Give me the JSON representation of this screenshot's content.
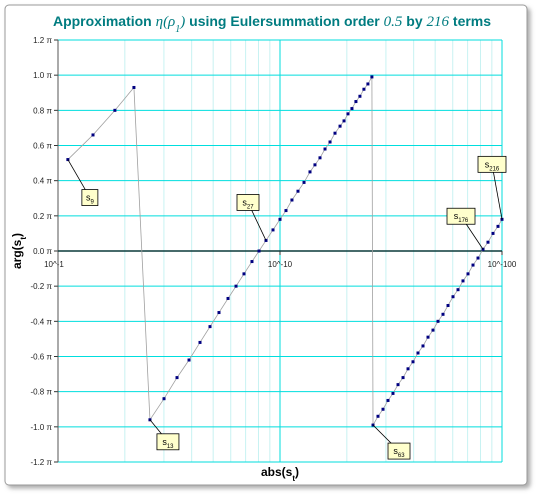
{
  "chart_data": {
    "type": "scatter",
    "title": {
      "pre": "Approximation",
      "math": "η(ρ",
      "sub": "1",
      "close": ")",
      "mid": "using Eulersummation order",
      "order": "0.5",
      "by": "by",
      "terms": "216",
      "end": "terms"
    },
    "xlabel": {
      "text": "abs(s",
      "sub": "t",
      "close": ")"
    },
    "ylabel": {
      "text": "arg(s",
      "sub": "t",
      "close": ")"
    },
    "xscale": "loglog",
    "xlim": [
      0.1,
      1e-100
    ],
    "xticks": [
      {
        "value": 0.1,
        "label": "10^-1"
      },
      {
        "value": 1e-10,
        "label": "10^-10"
      },
      {
        "value": 1e-100,
        "label": "10^-100"
      }
    ],
    "xminorticks": [
      0.01,
      0.001,
      0.0001,
      1e-05,
      1e-06,
      1e-07,
      1e-08,
      1e-09,
      1e-20,
      1e-30,
      1e-40,
      1e-50,
      1e-60,
      1e-70,
      1e-80,
      1e-90
    ],
    "ylim": [
      -1.2,
      1.2
    ],
    "yticks": [
      {
        "value": -1.2,
        "label": "-1.2 π"
      },
      {
        "value": -1.0,
        "label": "-1.0 π"
      },
      {
        "value": -0.8,
        "label": "-0.8 π"
      },
      {
        "value": -0.6,
        "label": "-0.6 π"
      },
      {
        "value": -0.4,
        "label": "-0.4 π"
      },
      {
        "value": -0.2,
        "label": "-0.2 π"
      },
      {
        "value": 0,
        "label": "0.0 π"
      },
      {
        "value": 0.2,
        "label": "0.2 π"
      },
      {
        "value": 0.4,
        "label": "0.4 π"
      },
      {
        "value": 0.6,
        "label": "0.6 π"
      },
      {
        "value": 0.8,
        "label": "0.8 π"
      },
      {
        "value": 1.0,
        "label": "1.0 π"
      },
      {
        "value": 1.2,
        "label": "1.2 π"
      }
    ],
    "grid": true,
    "color": "#000080",
    "line_color": "#a0a0a0",
    "grid_color": "#00dede",
    "x": [
      0.078,
      0.0365,
      0.0157,
      0.00634,
      0.00254,
      0.000993,
      0.000366,
      0.000128,
      4.35e-05,
      1.45e-05,
      4.89e-06,
      1.47e-06,
      4.6e-07,
      1.31e-07,
      3.33e-08,
      9.02e-09,
      2.25e-09,
      5.01e-10,
      1e-10,
      2.29e-11,
      4.79e-12,
      8.9e-13,
      1.48e-13,
      2.24e-14,
      4.27e-15,
      7.24e-16,
      1.12e-16,
      1.58e-17,
      2.04e-18,
      2.29e-19,
      3.72e-20,
      5.75e-21,
      8.13e-22,
      1.05e-22,
      1.23e-23,
      1.32e-24,
      1.29e-25,
      1.15e-26,
      5.75e-27,
      2.34e-28,
      7.76e-30,
      2.24e-31,
      5.25e-33,
      9.77e-35,
      1.48e-36,
      1.86e-38,
      1.86e-40,
      1.45e-42,
      8.51e-45,
      3.8e-47,
      1.29e-49,
      3.24e-52,
      5.89e-55,
      7.41e-58,
      6.92e-61,
      4.27e-64,
      1.86e-67,
      5.13e-71,
      9.33e-75,
      1.05e-78,
      7.59e-83,
      3.31e-87,
      8.13e-92,
      1.15e-96,
      1e-100
    ],
    "values": [
      0.52,
      0.66,
      0.8,
      0.93,
      -0.96,
      -0.84,
      -0.72,
      -0.62,
      -0.52,
      -0.43,
      -0.35,
      -0.27,
      -0.2,
      -0.13,
      -0.06,
      0.0,
      0.06,
      0.12,
      0.18,
      0.23,
      0.29,
      0.34,
      0.39,
      0.45,
      0.49,
      0.53,
      0.58,
      0.62,
      0.67,
      0.71,
      0.74,
      0.78,
      0.81,
      0.85,
      0.88,
      0.92,
      0.95,
      0.99,
      -0.99,
      -0.94,
      -0.9,
      -0.85,
      -0.81,
      -0.76,
      -0.72,
      -0.67,
      -0.63,
      -0.58,
      -0.54,
      -0.49,
      -0.45,
      -0.4,
      -0.36,
      -0.31,
      -0.26,
      -0.22,
      -0.17,
      -0.13,
      -0.08,
      -0.04,
      0.01,
      0.05,
      0.1,
      0.14,
      0.18
    ],
    "annotations": [
      {
        "text": "s",
        "sub": "9",
        "x": 0.078,
        "y": 0.52
      },
      {
        "text": "s",
        "sub": "13",
        "x": 0.00254,
        "y": -0.96
      },
      {
        "text": "s",
        "sub": "27",
        "x": 2.25e-09,
        "y": 0.06
      },
      {
        "text": "s",
        "sub": "63",
        "x": 5.75e-27,
        "y": -0.99
      },
      {
        "text": "s",
        "sub": "176",
        "x": 7.59e-83,
        "y": 0.01
      },
      {
        "text": "s",
        "sub": "216",
        "x": 1e-100,
        "y": 0.18
      }
    ]
  }
}
